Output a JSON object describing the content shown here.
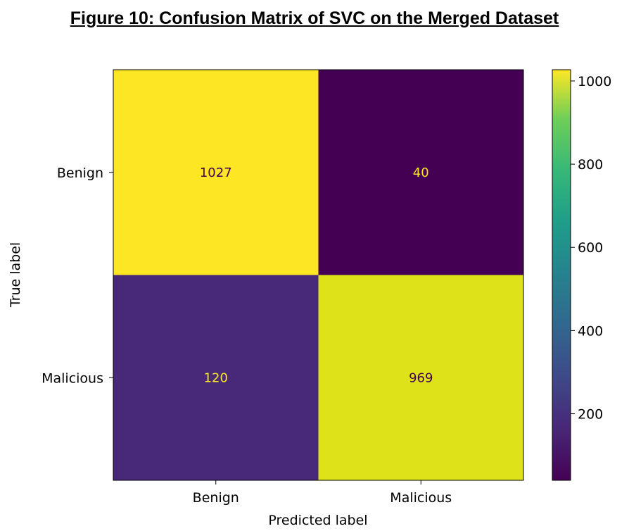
{
  "figure_title": "Figure 10: Confusion Matrix of SVC on the Merged Dataset",
  "chart_data": {
    "type": "heatmap",
    "title": "",
    "xlabel": "Predicted label",
    "ylabel": "True label",
    "x_categories": [
      "Benign",
      "Malicious"
    ],
    "y_categories": [
      "Benign",
      "Malicious"
    ],
    "values": [
      [
        1027,
        40
      ],
      [
        120,
        969
      ]
    ],
    "colormap": "viridis",
    "colorbar": {
      "min": 40,
      "max": 1027,
      "ticks": [
        200,
        400,
        600,
        800,
        1000
      ]
    },
    "cell_colors": [
      "#fde725",
      "#440154",
      "#482878",
      "#dde318"
    ],
    "text_colors": [
      "#440154",
      "#fde725",
      "#fde725",
      "#440154"
    ]
  }
}
